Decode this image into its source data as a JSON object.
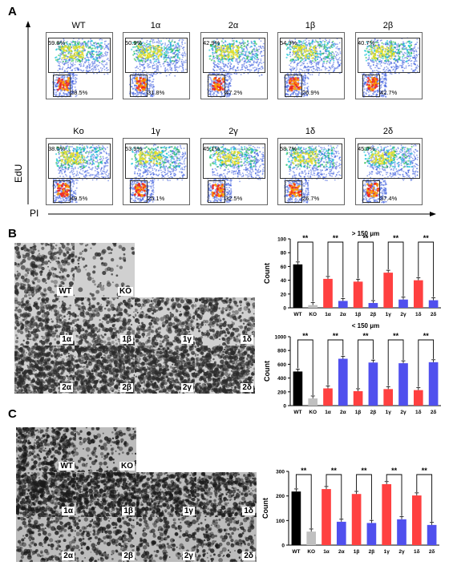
{
  "panels": {
    "A": "A",
    "B": "B",
    "C": "C"
  },
  "panel_a": {
    "y_axis_label": "EdU",
    "x_axis_label": "PI",
    "plots": [
      {
        "title": "WT",
        "upper_pct": "59.8%",
        "lower_pct": "28.5%"
      },
      {
        "title": "1α",
        "upper_pct": "50.9%",
        "lower_pct": "31.8%"
      },
      {
        "title": "2α",
        "upper_pct": "42.9%",
        "lower_pct": "47.2%"
      },
      {
        "title": "1β",
        "upper_pct": "54.3%",
        "lower_pct": "26.9%"
      },
      {
        "title": "2β",
        "upper_pct": "40.7%",
        "lower_pct": "42.7%"
      },
      {
        "title": "Ko",
        "upper_pct": "38.0%",
        "lower_pct": "49.5%"
      },
      {
        "title": "1γ",
        "upper_pct": "53.9%",
        "lower_pct": "25.1%"
      },
      {
        "title": "2γ",
        "upper_pct": "45.1%",
        "lower_pct": "32.5%"
      },
      {
        "title": "1δ",
        "upper_pct": "58.7%",
        "lower_pct": "26.7%"
      },
      {
        "title": "2δ",
        "upper_pct": "45.0%",
        "lower_pct": "37.4%"
      }
    ]
  },
  "panel_b_images": [
    "WT",
    "KO",
    "1α",
    "1β",
    "1γ",
    "1δ",
    "2α",
    "2β",
    "2γ",
    "2δ"
  ],
  "panel_c_images": [
    "WT",
    "KO",
    "1α",
    "1β",
    "1γ",
    "1δ",
    "2α",
    "2β",
    "2γ",
    "2δ"
  ],
  "colors": {
    "black": "#000000",
    "gray": "#c0c0c0",
    "red": "#ff4040",
    "blue": "#5050ee"
  },
  "chart_data": [
    {
      "type": "bar",
      "title": "> 150 μm",
      "ylabel": "Count",
      "categories": [
        "WT",
        "KO",
        "1α",
        "2α",
        "1β",
        "2β",
        "1γ",
        "2γ",
        "1δ",
        "2δ"
      ],
      "values": [
        63,
        4,
        42,
        10,
        38,
        7,
        51,
        12,
        40,
        11
      ],
      "ylim": [
        0,
        100
      ],
      "yticks": [
        "0",
        "20",
        "40",
        "60",
        "80",
        "100"
      ],
      "significance": [
        "**",
        "**",
        "**",
        "**",
        "**"
      ]
    },
    {
      "type": "bar",
      "title": "< 150 μm",
      "ylabel": "Count",
      "categories": [
        "WT",
        "KO",
        "1α",
        "2α",
        "1β",
        "2β",
        "1γ",
        "2γ",
        "1δ",
        "2δ"
      ],
      "values": [
        495,
        105,
        250,
        680,
        210,
        625,
        240,
        615,
        225,
        630
      ],
      "ylim": [
        0,
        1000
      ],
      "yticks": [
        "0",
        "200",
        "400",
        "600",
        "800",
        "1000"
      ],
      "significance": [
        "**",
        "**",
        "**",
        "**",
        "**"
      ]
    },
    {
      "type": "bar",
      "title": "",
      "ylabel": "Count",
      "categories": [
        "WT",
        "KO",
        "1α",
        "2α",
        "1β",
        "2β",
        "1γ",
        "2γ",
        "1δ",
        "2δ"
      ],
      "values": [
        218,
        55,
        228,
        95,
        208,
        90,
        248,
        105,
        202,
        82
      ],
      "ylim": [
        0,
        300
      ],
      "yticks": [
        "0",
        "100",
        "200",
        "300"
      ],
      "significance": [
        "**",
        "**",
        "**",
        "**",
        "**"
      ]
    }
  ]
}
